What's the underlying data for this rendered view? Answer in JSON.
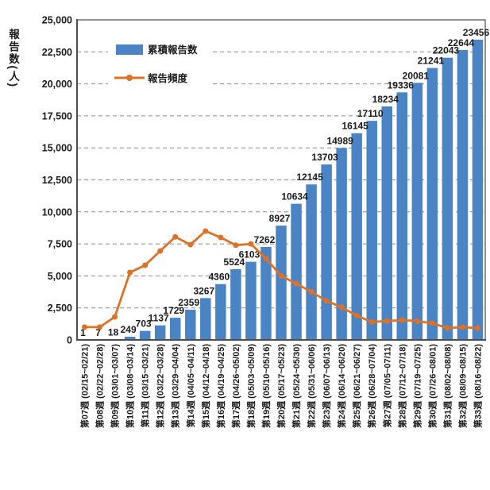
{
  "chart_data": {
    "type": "bar",
    "title": "",
    "ylabel": "報告数(人)",
    "xlabel": "",
    "y_axis": {
      "min": 0,
      "max": 25000,
      "step": 2500
    },
    "grid": "dashed-horizontal",
    "legend_position": "top-left-inside",
    "categories": [
      "第07週 (02/15~02/21)",
      "第08週 (02/22~02/28)",
      "第09週 (03/01~03/07)",
      "第10週 (03/08~03/14)",
      "第11週 (03/15~03/21)",
      "第12週 (03/22~03/28)",
      "第13週 (03/29~04/04)",
      "第14週 (04/05~04/11)",
      "第15週 (04/12~04/18)",
      "第16週 (04/19~04/25)",
      "第17週 (04/26~05/02)",
      "第18週 (05/03~05/09)",
      "第19週 (05/10~05/16)",
      "第20週 (05/17~05/23)",
      "第21週 (05/24~05/30)",
      "第22週 (05/31~06/06)",
      "第23週 (06/07~06/13)",
      "第24週 (06/14~06/20)",
      "第25週 (06/21~06/27)",
      "第26週 (06/28~07/04)",
      "第27週 (07/05~07/11)",
      "第28週 (07/12~07/18)",
      "第29週 (07/19~07/25)",
      "第30週 (07/26~08/01)",
      "第31週 (08/02~08/08)",
      "第32週 (08/09~08/15)",
      "第33週 (08/16~08/22)"
    ],
    "series": [
      {
        "name": "累積報告数",
        "type": "bar",
        "color": "#4b84c4",
        "values": [
          1,
          7,
          18,
          249,
          703,
          1137,
          1729,
          2359,
          3267,
          4360,
          5524,
          6103,
          7262,
          8927,
          10634,
          12145,
          13703,
          14989,
          16145,
          17110,
          18234,
          19336,
          20081,
          21241,
          22043,
          22644,
          23456
        ],
        "data_labels": true
      },
      {
        "name": "報告頻度",
        "type": "line",
        "color": "#dc7127",
        "values": [
          1000,
          1000,
          1800,
          5270,
          5830,
          6950,
          8050,
          7440,
          8500,
          8000,
          7400,
          7500,
          6350,
          5000,
          4400,
          3750,
          3050,
          2550,
          1900,
          1400,
          1475,
          1550,
          1475,
          1300,
          930,
          990,
          930
        ],
        "data_labels": false
      }
    ]
  },
  "colors": {
    "bar": "#4b84c4",
    "line": "#dc7127",
    "grid": "#8c8c8c",
    "axis": "#4d4d4d",
    "text": "#1a1a1a",
    "background": "#ffffff"
  }
}
